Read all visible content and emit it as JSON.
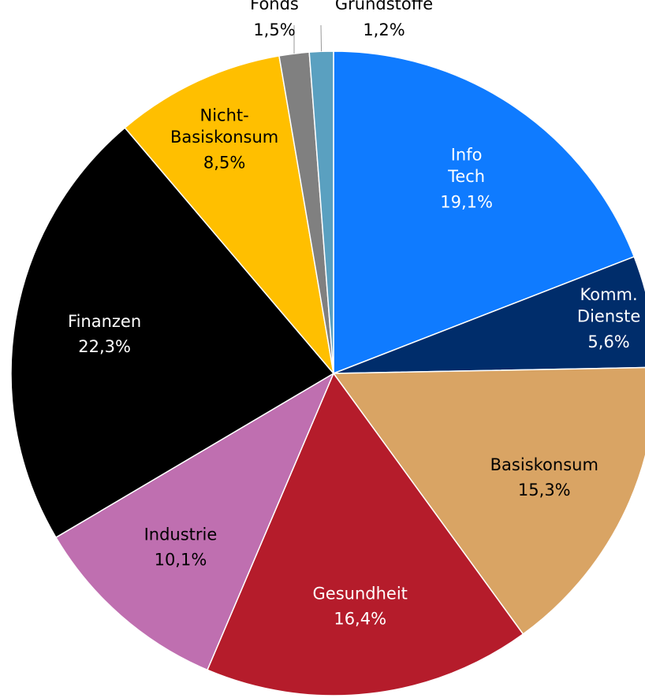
{
  "chart_data": {
    "type": "pie",
    "categories": [
      "Info Tech",
      "Komm. Dienste",
      "Basiskonsum",
      "Gesundheit",
      "Industrie",
      "Finanzen",
      "Nicht-Basiskonsum",
      "Fonds",
      "Grundstoffe"
    ],
    "values": [
      19.1,
      5.6,
      15.3,
      16.4,
      10.1,
      22.3,
      8.5,
      1.5,
      1.2
    ],
    "value_labels": [
      "19,1%",
      "5,6%",
      "15,3%",
      "16,4%",
      "10,1%",
      "22,3%",
      "8,5%",
      "1,5%",
      "1,2%"
    ],
    "colors": [
      "#0f7bff",
      "#002d6b",
      "#d9a464",
      "#b51c2b",
      "#bf6fb0",
      "#000000",
      "#ffbf00",
      "#808080",
      "#5aa0c0"
    ]
  }
}
